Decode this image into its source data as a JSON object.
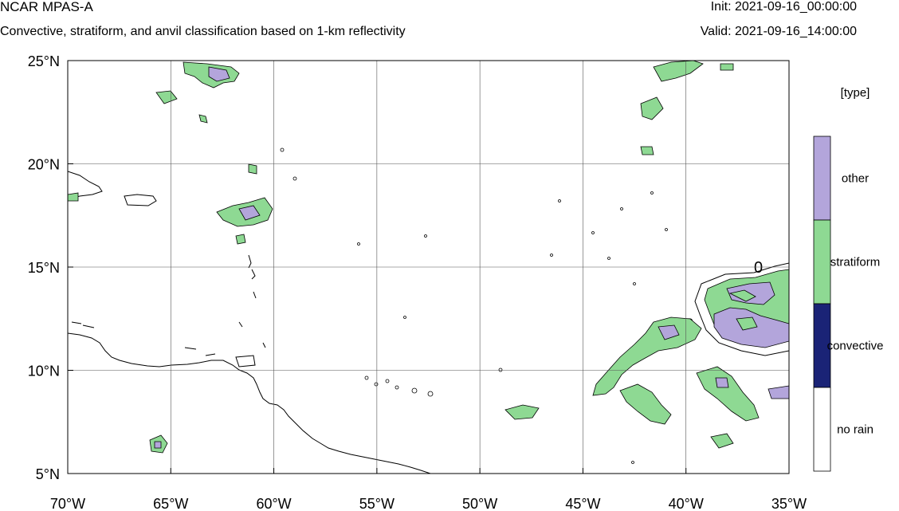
{
  "header": {
    "title": "NCAR MPAS-A",
    "subtitle": "Convective, stratiform, and anvil classification based on 1-km reflectivity",
    "init": "Init: 2021-09-16_00:00:00",
    "valid": "Valid: 2021-09-16_14:00:00"
  },
  "map": {
    "lon_range": [
      -70,
      -35
    ],
    "lat_range": [
      5,
      25
    ],
    "lon_ticks": [
      -70,
      -65,
      -60,
      -55,
      -50,
      -45,
      -40,
      -35
    ],
    "lat_ticks": [
      5,
      10,
      15,
      20,
      25
    ],
    "lon_tick_labels": [
      "70°W",
      "65°W",
      "60°W",
      "55°W",
      "50°W",
      "45°W",
      "40°W",
      "35°W"
    ],
    "lat_tick_labels": [
      "5°N",
      "10°N",
      "15°N",
      "20°N",
      "25°N"
    ],
    "grid": true,
    "contour_label": "0"
  },
  "legend": {
    "title": "[type]",
    "items": [
      {
        "label": "other",
        "color": "#b3a5db"
      },
      {
        "label": "stratiform",
        "color": "#8ed993"
      },
      {
        "label": "convective",
        "color": "#1a2376"
      },
      {
        "label": "no rain",
        "color": "#ffffff"
      }
    ]
  },
  "colors": {
    "other": "#b3a5db",
    "stratiform": "#8ed993",
    "convective": "#1a2376",
    "no_rain": "#ffffff",
    "contour": "#000000",
    "coastline": "#000000"
  }
}
